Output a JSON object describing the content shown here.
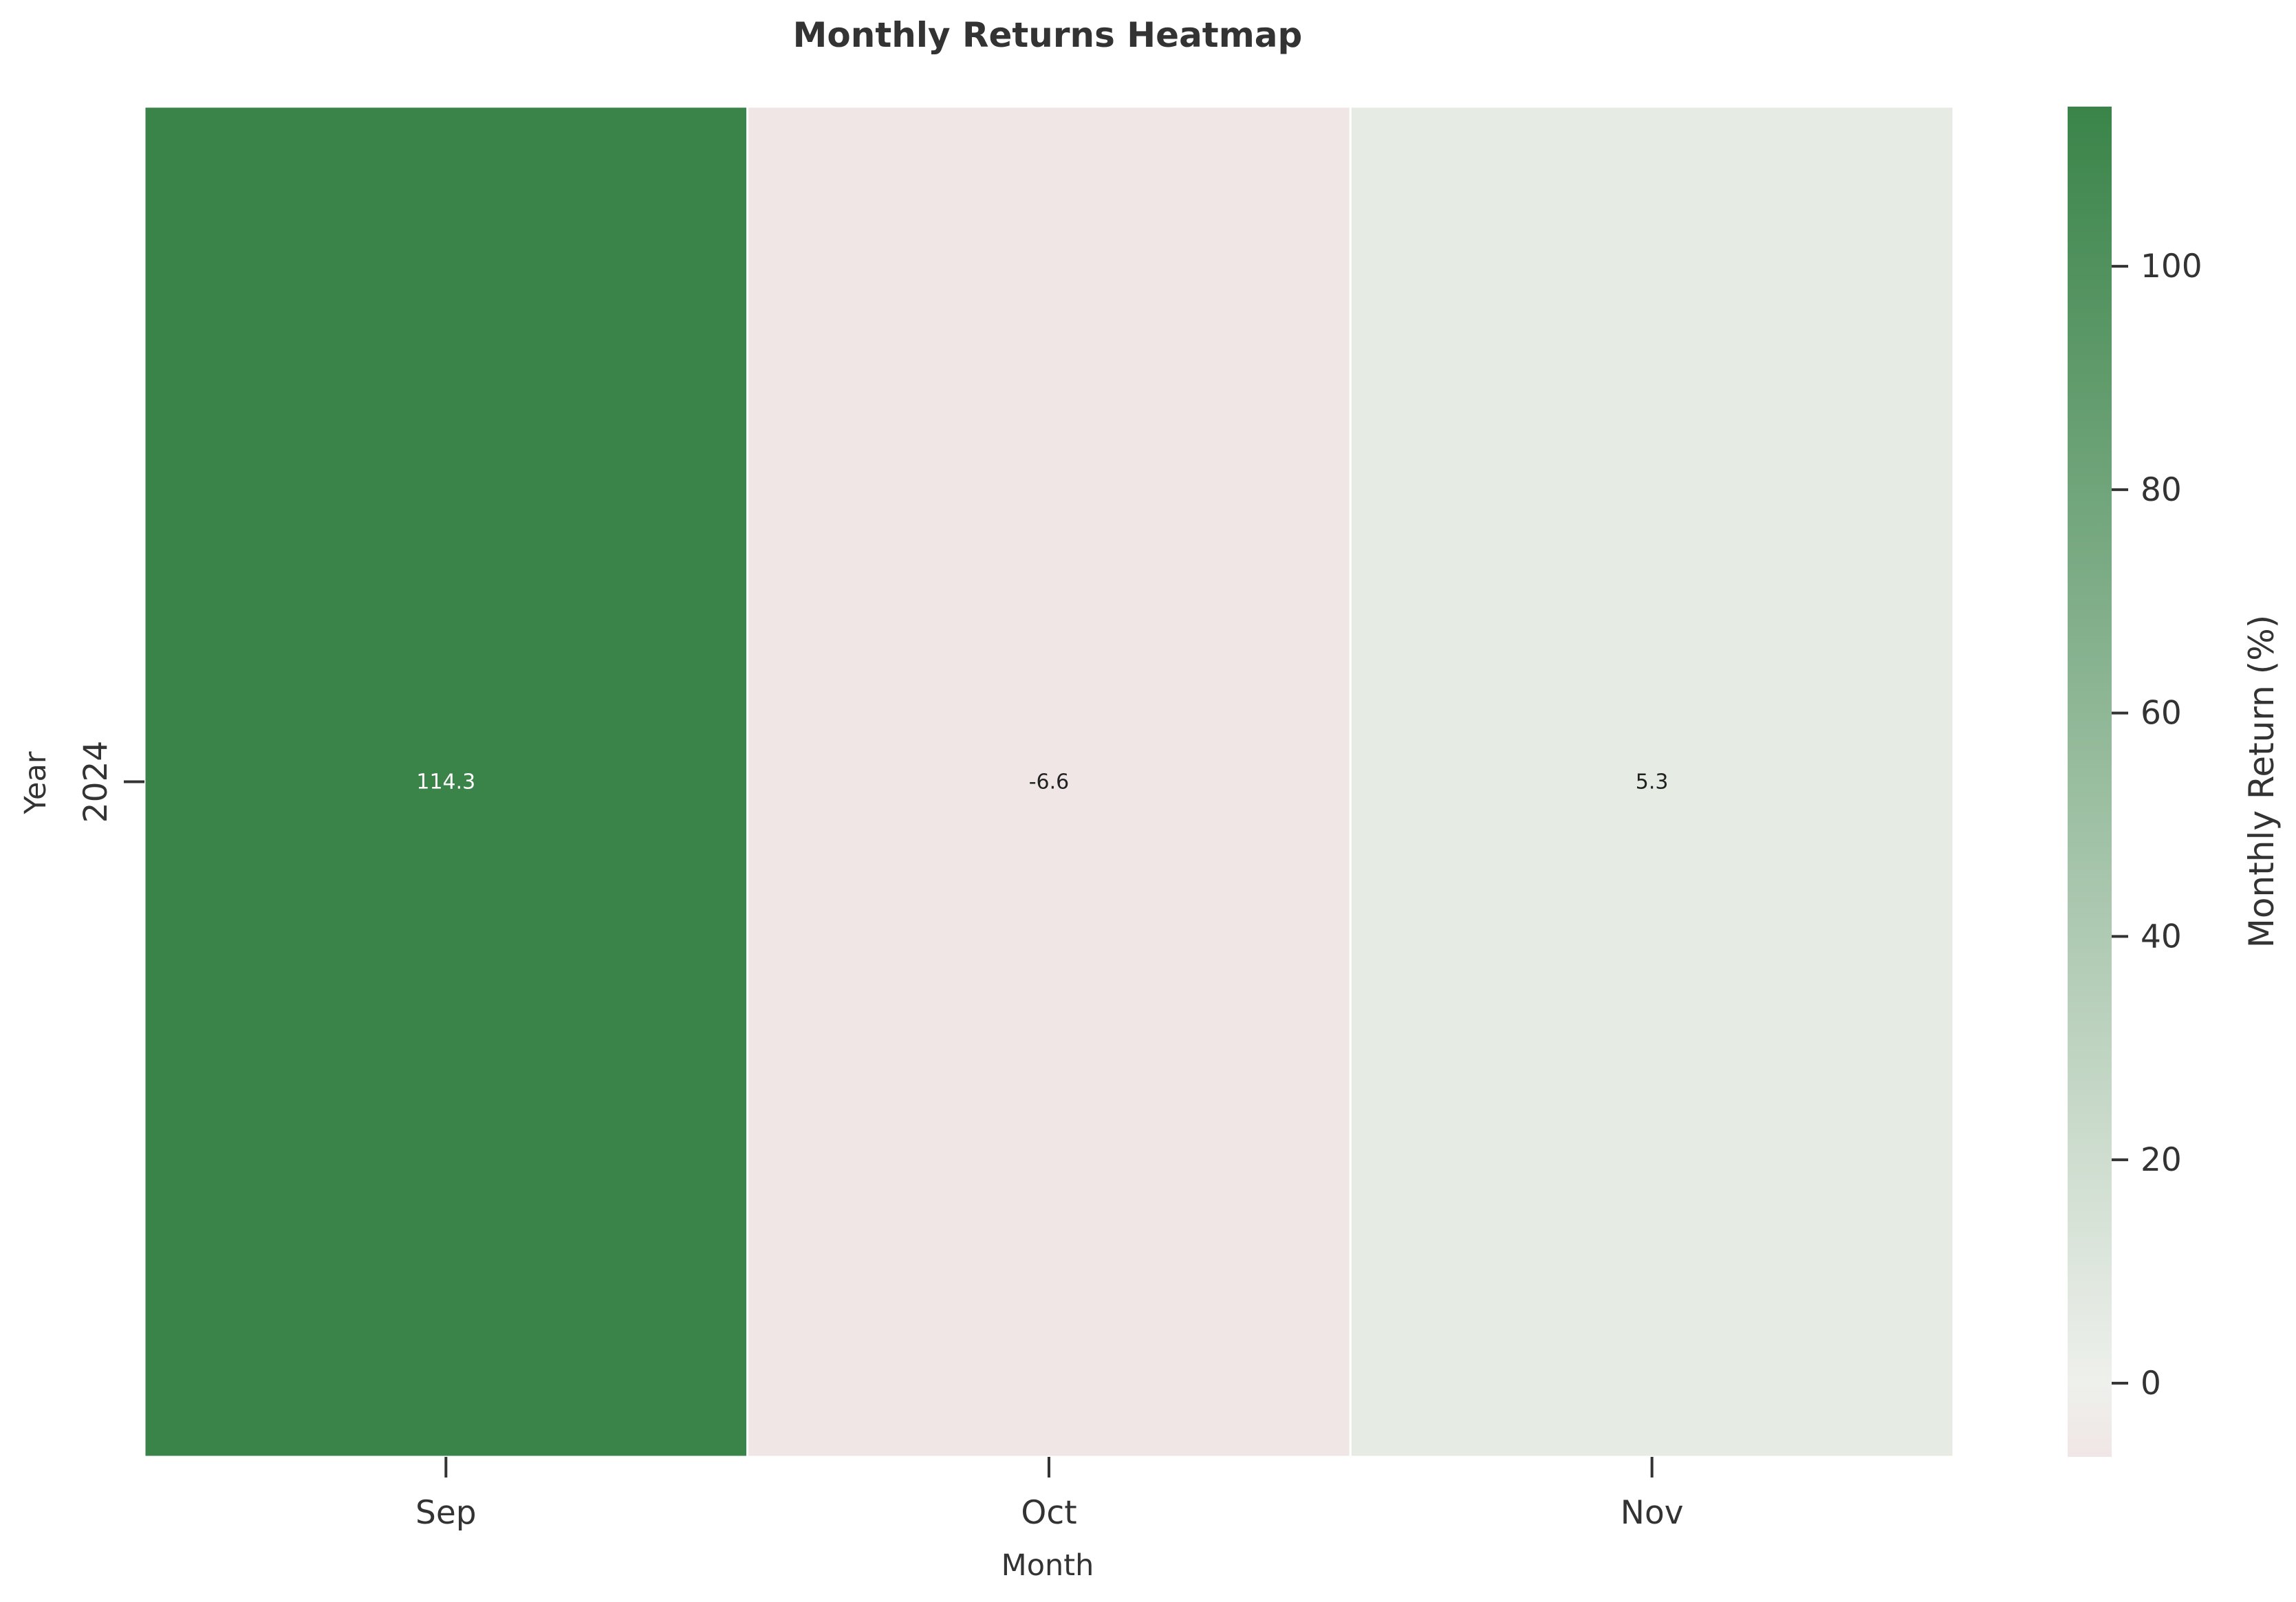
{
  "chart_data": {
    "type": "heatmap",
    "title": "Monthly Returns Heatmap",
    "xlabel": "Month",
    "ylabel": "Year",
    "x_categories": [
      "Sep",
      "Oct",
      "Nov"
    ],
    "y_categories": [
      "2024"
    ],
    "values": [
      [
        114.3,
        -6.6,
        5.3
      ]
    ],
    "cell_labels": [
      [
        "114.3",
        "-6.6",
        "5.3"
      ]
    ],
    "colorbar": {
      "label": "Monthly Return (%)",
      "range": [
        -6.6,
        114.3
      ],
      "ticks": [
        0,
        20,
        40,
        60,
        80,
        100
      ],
      "tick_labels": [
        "0",
        "20",
        "40",
        "60",
        "80",
        "100"
      ],
      "color_low": "#f0e6e6",
      "color_zero": "#eef0ec",
      "color_high": "#3a8449"
    },
    "grid": false,
    "colors": {
      "text": "#333333",
      "cell_text_dark": "#222222",
      "cell_text_light": "#ffffff",
      "cell_border": "#ffffff"
    }
  }
}
